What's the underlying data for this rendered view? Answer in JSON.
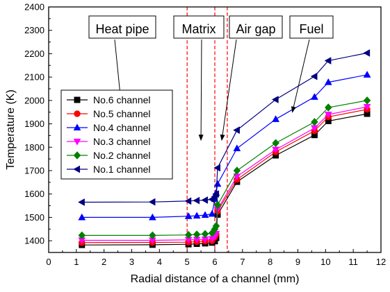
{
  "chart_data": {
    "type": "line",
    "title": "",
    "xlabel": "Radial distance of a channel (mm)",
    "ylabel": "Temperature (K)",
    "xlim": [
      0,
      12
    ],
    "ylim": [
      1350,
      2400
    ],
    "x_ticks": [
      0,
      1,
      2,
      3,
      4,
      5,
      6,
      7,
      8,
      9,
      10,
      11,
      12
    ],
    "y_ticks": [
      1400,
      1500,
      1600,
      1700,
      1800,
      1900,
      2000,
      2100,
      2200,
      2300,
      2400
    ],
    "grid": false,
    "legend_position": "left",
    "x": [
      1.2,
      3.75,
      5.05,
      5.35,
      5.65,
      5.9,
      6.0,
      6.05,
      6.1,
      6.8,
      8.2,
      9.6,
      10.1,
      11.5
    ],
    "series": [
      {
        "name": "No.6 channel",
        "color": "#000000",
        "marker": "square",
        "values": [
          1382,
          1383,
          1385,
          1387,
          1389,
          1392,
          1398,
          1412,
          1512,
          1652,
          1765,
          1852,
          1912,
          1943
        ]
      },
      {
        "name": "No.5 channel",
        "color": "#ff0000",
        "marker": "circle",
        "values": [
          1392,
          1393,
          1394,
          1396,
          1398,
          1400,
          1415,
          1428,
          1527,
          1662,
          1780,
          1870,
          1930,
          1962
        ]
      },
      {
        "name": "No.4 channel",
        "color": "#0000ff",
        "marker": "triangle-up",
        "values": [
          1500,
          1500,
          1505,
          1507,
          1510,
          1515,
          1578,
          1605,
          1643,
          1795,
          1920,
          2015,
          2078,
          2110
        ]
      },
      {
        "name": "No.3 channel",
        "color": "#ff00ff",
        "marker": "triangle-down",
        "values": [
          1402,
          1402,
          1404,
          1405,
          1406,
          1408,
          1418,
          1430,
          1535,
          1675,
          1790,
          1882,
          1940,
          1973
        ]
      },
      {
        "name": "No.2 channel",
        "color": "#008000",
        "marker": "diamond",
        "values": [
          1423,
          1423,
          1425,
          1427,
          1429,
          1433,
          1450,
          1463,
          1553,
          1700,
          1818,
          1908,
          1970,
          2000
        ]
      },
      {
        "name": "No.1 channel",
        "color": "#000080",
        "marker": "triangle-left",
        "values": [
          1565,
          1566,
          1570,
          1572,
          1574,
          1577,
          1588,
          1600,
          1712,
          1873,
          2004,
          2103,
          2170,
          2203
        ]
      }
    ],
    "divider_lines_x": [
      5.0,
      6.0,
      6.45
    ],
    "divider_color": "#ff0000",
    "annotations": [
      {
        "text": "Heat pipe",
        "arrow_to": [
          2.75,
          1830
        ]
      },
      {
        "text": "Matrix",
        "arrow_to": [
          5.5,
          1830
        ]
      },
      {
        "text": "Air gap",
        "arrow_to": [
          6.25,
          1830
        ]
      },
      {
        "text": "Fuel",
        "arrow_to": [
          8.8,
          1950
        ]
      }
    ]
  }
}
